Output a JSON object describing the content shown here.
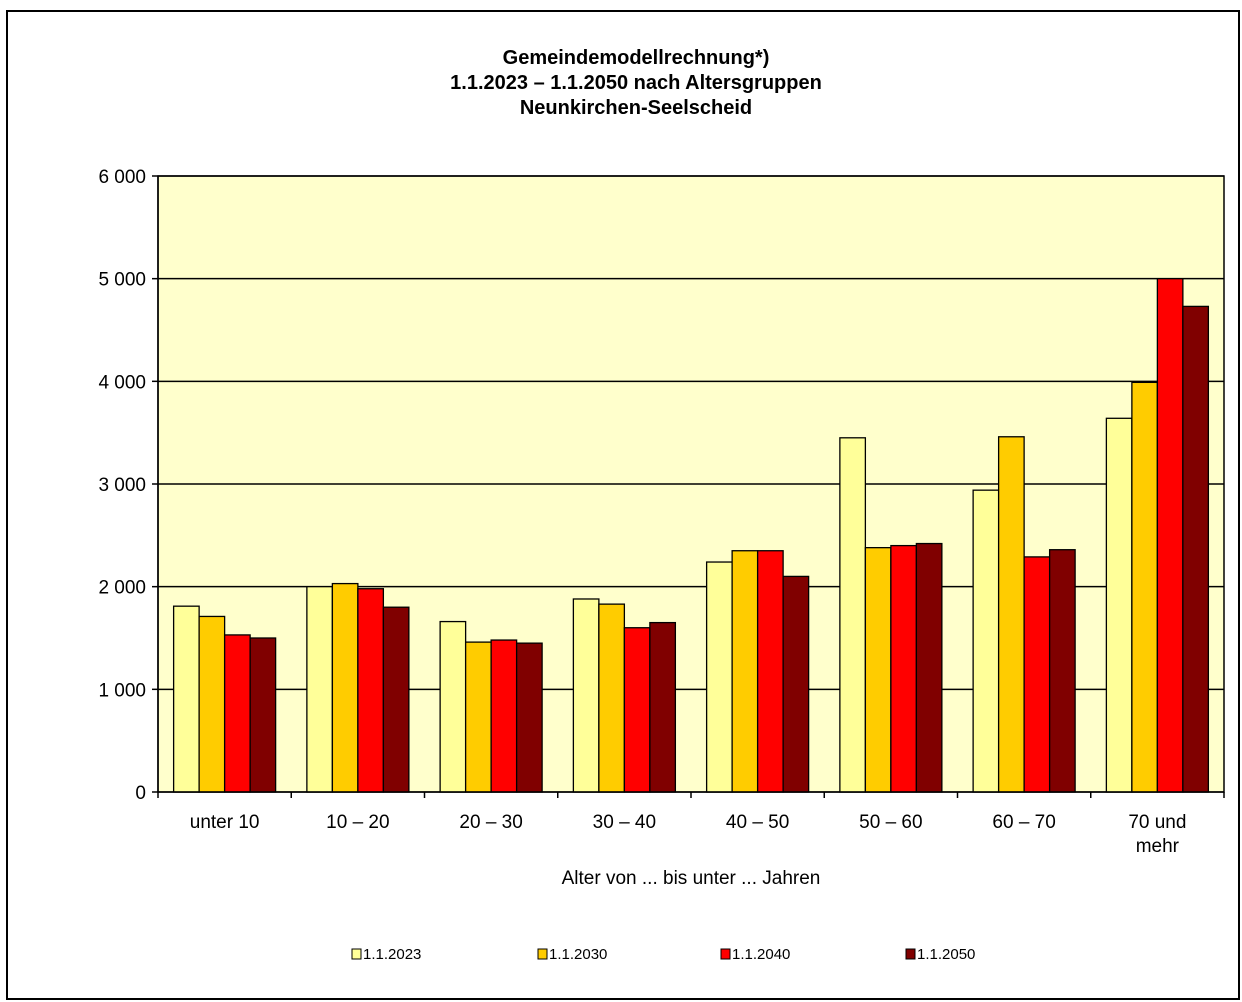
{
  "chart_data": {
    "type": "bar",
    "title_lines": [
      "Gemeindemodellrechnung*)",
      "1.1.2023 – 1.1.2050 nach Altersgruppen",
      "Neunkirchen-Seelscheid"
    ],
    "xlabel": "Alter von ... bis unter ... Jahren",
    "ylabel": "",
    "ylim": [
      0,
      6000
    ],
    "yticks": [
      0,
      1000,
      2000,
      3000,
      4000,
      5000,
      6000
    ],
    "ytick_labels": [
      "0",
      "1 000",
      "2 000",
      "3 000",
      "4 000",
      "5 000",
      "6 000"
    ],
    "grid": true,
    "legend_position": "bottom",
    "categories": [
      [
        "unter 10"
      ],
      [
        "10 – 20"
      ],
      [
        "20 – 30"
      ],
      [
        "30 – 40"
      ],
      [
        "40 – 50"
      ],
      [
        "50 – 60"
      ],
      [
        "60 – 70"
      ],
      [
        "70 und",
        "mehr"
      ]
    ],
    "series": [
      {
        "name": "1.1.2023",
        "color": "#ffff99",
        "values": [
          1810,
          2000,
          1660,
          1880,
          2240,
          3450,
          2940,
          3640
        ]
      },
      {
        "name": "1.1.2030",
        "color": "#ffcc00",
        "values": [
          1710,
          2030,
          1460,
          1830,
          2350,
          2380,
          3460,
          3990
        ]
      },
      {
        "name": "1.1.2040",
        "color": "#ff0000",
        "values": [
          1530,
          1980,
          1480,
          1600,
          2350,
          2400,
          2290,
          5000
        ]
      },
      {
        "name": "1.1.2050",
        "color": "#800000",
        "values": [
          1500,
          1800,
          1450,
          1650,
          2100,
          2420,
          2360,
          4730
        ]
      }
    ],
    "plot_background": "#ffffcc"
  }
}
